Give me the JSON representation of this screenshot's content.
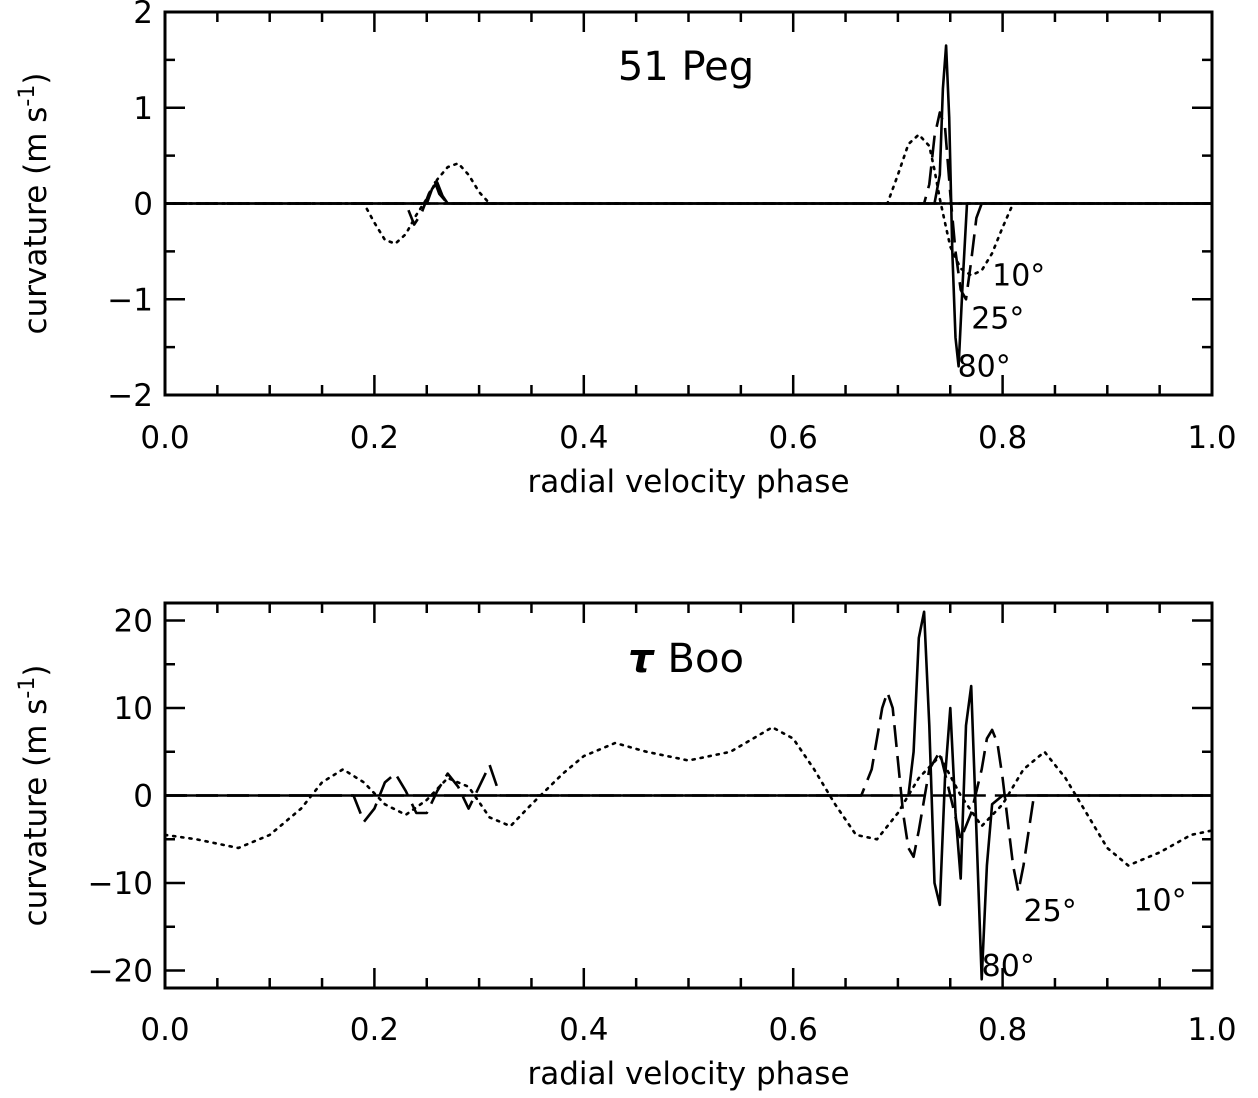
{
  "chart_data": [
    {
      "type": "line",
      "title": "51 Peg",
      "xlabel": "radial velocity phase",
      "ylabel": "curvature (m s",
      "ylabel_sup": "-1",
      "ylabel_close": ")",
      "xlim": [
        0.0,
        1.0
      ],
      "ylim": [
        -2,
        2
      ],
      "xticks": [
        0.0,
        0.2,
        0.4,
        0.6,
        0.8,
        1.0
      ],
      "xtick_labels": [
        "0.0",
        "0.2",
        "0.4",
        "0.6",
        "0.8",
        "1.0"
      ],
      "yticks": [
        -2,
        -1,
        0,
        1,
        2
      ],
      "ytick_labels": [
        "−2",
        "−1",
        "0",
        "1",
        "2"
      ],
      "grid": false,
      "annotations": [
        {
          "text": "10°",
          "x": 0.79,
          "y": -0.75
        },
        {
          "text": "25°",
          "x": 0.77,
          "y": -1.2
        },
        {
          "text": "80°",
          "x": 0.757,
          "y": -1.7
        }
      ],
      "series": [
        {
          "style": "dotted",
          "x": [
            0.0,
            0.19,
            0.2,
            0.21,
            0.22,
            0.23,
            0.24,
            0.25,
            0.26,
            0.27,
            0.28,
            0.29,
            0.3,
            0.31,
            0.32,
            1.0
          ],
          "y": [
            0,
            0,
            -0.2,
            -0.38,
            -0.42,
            -0.32,
            -0.12,
            0.05,
            0.25,
            0.38,
            0.42,
            0.3,
            0.12,
            0,
            0,
            0
          ]
        },
        {
          "style": "dotted",
          "x": [
            0.0,
            0.69,
            0.7,
            0.71,
            0.72,
            0.73,
            0.735,
            0.74,
            0.745,
            0.75,
            0.76,
            0.77,
            0.78,
            0.79,
            0.8,
            0.81,
            1.0
          ],
          "y": [
            0,
            0,
            0.3,
            0.62,
            0.72,
            0.6,
            0.35,
            0.05,
            -0.2,
            -0.45,
            -0.68,
            -0.75,
            -0.7,
            -0.52,
            -0.25,
            0,
            0
          ]
        },
        {
          "style": "dashed",
          "x": [
            0.0,
            0.23,
            0.238,
            0.245,
            0.252,
            0.258,
            0.262,
            0.27,
            1.0
          ],
          "y": [
            0,
            0,
            -0.22,
            -0.1,
            0.1,
            0.22,
            0.1,
            0,
            0
          ]
        },
        {
          "style": "dashed",
          "x": [
            0.0,
            0.725,
            0.73,
            0.735,
            0.74,
            0.745,
            0.75,
            0.755,
            0.76,
            0.765,
            0.77,
            0.775,
            0.78,
            1.0
          ],
          "y": [
            0,
            0,
            0.2,
            0.7,
            0.95,
            0.8,
            0.1,
            -0.5,
            -0.9,
            -1.0,
            -0.6,
            -0.15,
            0,
            0
          ]
        },
        {
          "style": "solid",
          "x": [
            0.0,
            0.25,
            0.255,
            0.26,
            0.265,
            0.27,
            1.0
          ],
          "y": [
            0,
            0,
            0.15,
            0.22,
            0.08,
            0,
            0
          ]
        },
        {
          "style": "solid",
          "x": [
            0.0,
            0.735,
            0.74,
            0.743,
            0.746,
            0.749,
            0.752,
            0.755,
            0.758,
            0.762,
            0.766,
            1.0
          ],
          "y": [
            0,
            0,
            0.3,
            1.2,
            1.65,
            0.9,
            -0.5,
            -1.4,
            -1.7,
            -0.8,
            0,
            0
          ]
        }
      ]
    },
    {
      "type": "line",
      "title_symbol": "τ",
      "title": "Boo",
      "xlabel": "radial velocity phase",
      "ylabel": "curvature (m s",
      "ylabel_sup": "-1",
      "ylabel_close": ")",
      "xlim": [
        0.0,
        1.0
      ],
      "ylim": [
        -22,
        22
      ],
      "xticks": [
        0.0,
        0.2,
        0.4,
        0.6,
        0.8,
        1.0
      ],
      "xtick_labels": [
        "0.0",
        "0.2",
        "0.4",
        "0.6",
        "0.8",
        "1.0"
      ],
      "yticks": [
        -20,
        -10,
        0,
        10,
        20
      ],
      "ytick_labels": [
        "−20",
        "−10",
        "0",
        "10",
        "20"
      ],
      "grid": false,
      "annotations": [
        {
          "text": "25°",
          "x": 0.82,
          "y": -13.2
        },
        {
          "text": "10°",
          "x": 0.925,
          "y": -12
        },
        {
          "text": "80°",
          "x": 0.78,
          "y": -19.5
        }
      ],
      "series": [
        {
          "style": "dotted",
          "x": [
            0.0,
            0.03,
            0.07,
            0.1,
            0.13,
            0.15,
            0.17,
            0.19,
            0.21,
            0.23,
            0.25,
            0.27,
            0.29,
            0.31,
            0.33,
            0.35,
            0.38,
            0.4,
            0.43,
            0.46,
            0.5,
            0.54,
            0.58,
            0.6,
            0.62,
            0.64,
            0.66,
            0.68,
            0.7,
            0.72,
            0.74,
            0.76,
            0.78,
            0.8,
            0.82,
            0.84,
            0.86,
            0.88,
            0.9,
            0.92,
            0.95,
            0.98,
            1.0
          ],
          "y": [
            -4.5,
            -5.0,
            -6.0,
            -4.5,
            -1.5,
            1.5,
            3.0,
            1.5,
            -1.0,
            -2.2,
            -0.5,
            2.0,
            1.0,
            -2.5,
            -3.5,
            -1.0,
            2.5,
            4.5,
            6.0,
            5.0,
            4.0,
            5.0,
            7.8,
            6.5,
            3.0,
            -1.0,
            -4.5,
            -5.0,
            -2.0,
            2.0,
            4.5,
            0.0,
            -3.5,
            -1.0,
            3.0,
            5.0,
            2.0,
            -2.0,
            -6.0,
            -8.0,
            -6.5,
            -4.5,
            -4.0
          ]
        },
        {
          "style": "dashed",
          "x": [
            0.0,
            0.18,
            0.19,
            0.2,
            0.21,
            0.22,
            0.23,
            0.24,
            0.25,
            0.26,
            0.27,
            0.28,
            0.29,
            0.3,
            0.31,
            0.32,
            1.0
          ],
          "y": [
            0,
            0,
            -3.0,
            -1.5,
            1.5,
            2.5,
            0.5,
            -2.0,
            -2.0,
            0.5,
            2.5,
            1.0,
            -1.5,
            1.0,
            3.5,
            0,
            0
          ]
        },
        {
          "style": "dashed",
          "x": [
            0.0,
            0.665,
            0.675,
            0.685,
            0.69,
            0.695,
            0.7,
            0.705,
            0.71,
            0.715,
            0.72,
            0.73,
            0.74,
            0.75,
            0.76,
            0.77,
            0.78,
            0.785,
            0.79,
            0.795,
            0.8,
            0.805,
            0.81,
            0.815,
            0.82,
            0.83,
            1.0
          ],
          "y": [
            0,
            0,
            3.0,
            10.0,
            11.8,
            10.0,
            4.0,
            -2.0,
            -6.0,
            -7.0,
            -4.0,
            3.0,
            5.0,
            0.0,
            -5.0,
            -2.0,
            3.0,
            6.5,
            7.5,
            6.0,
            2.0,
            -3.0,
            -8.0,
            -11.0,
            -8.0,
            0,
            0
          ]
        },
        {
          "style": "solid",
          "x": [
            0.0,
            0.71,
            0.715,
            0.72,
            0.725,
            0.73,
            0.735,
            0.74,
            0.745,
            0.75,
            0.755,
            0.76,
            0.765,
            0.77,
            0.775,
            0.78,
            0.785,
            0.79,
            0.8,
            1.0
          ],
          "y": [
            0,
            0,
            5.0,
            18.0,
            21.0,
            8.0,
            -10.0,
            -12.5,
            2.0,
            10.0,
            -2.0,
            -9.5,
            8.0,
            12.5,
            -4.0,
            -21.0,
            -8.0,
            -1.0,
            0,
            0
          ]
        }
      ]
    }
  ]
}
